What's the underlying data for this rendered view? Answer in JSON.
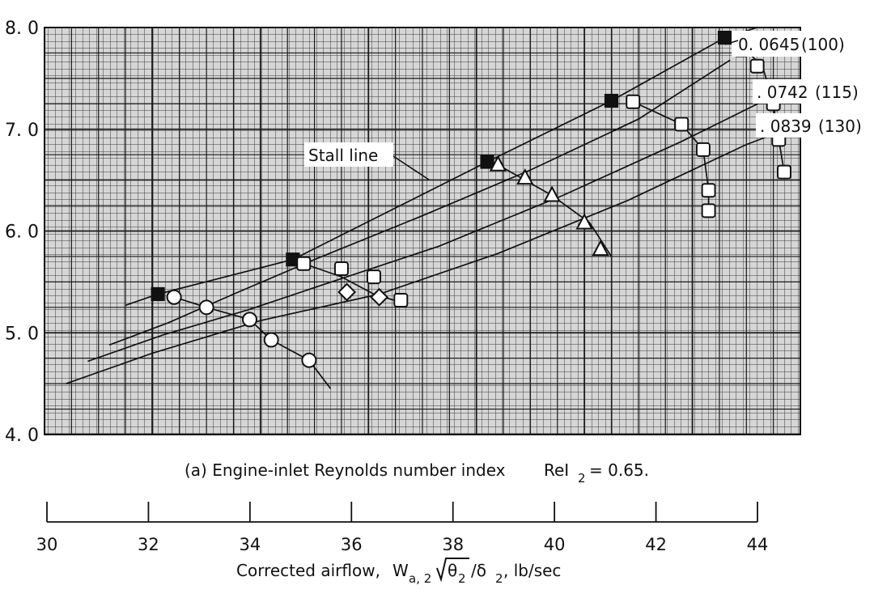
{
  "chart_data": {
    "type": "line",
    "caption_lead": "(a) Engine-inlet Reynolds number index",
    "caption_symbol": "ReI",
    "caption_subscript": "2",
    "caption_value": "= 0.65.",
    "xlabel": {
      "lead": "Corrected airflow,",
      "w": "W",
      "w_sub": "a, 2",
      "theta": "θ",
      "theta_sub": "2",
      "slash": "/δ",
      "delta_sub": "2",
      "unit": ",  lb/sec"
    },
    "ylabel": "",
    "xlim": [
      30,
      44
    ],
    "ylim": [
      4.0,
      8.0
    ],
    "x_ticks": [
      30,
      32,
      34,
      36,
      38,
      40,
      42,
      44
    ],
    "x_tick_labels": [
      "30",
      "32",
      "34",
      "36",
      "38",
      "40",
      "42",
      "44"
    ],
    "y_ticks": [
      4.0,
      5.0,
      6.0,
      7.0,
      8.0
    ],
    "y_tick_labels": [
      "4. 0",
      "5. 0",
      "6. 0",
      "7. 0",
      "8. 0"
    ],
    "grid": true,
    "annotations": {
      "stall_line": "Stall line",
      "speed_lines": [
        {
          "value": "0. 0645",
          "pct": "(100)"
        },
        {
          "value": ". 0742",
          "pct": "(115)"
        },
        {
          "value": ". 0839",
          "pct": "(130)"
        }
      ]
    },
    "stall_line": {
      "x": [
        31.5,
        32.1,
        34.6,
        38.2,
        40.5,
        42.6,
        43.2
      ],
      "y": [
        5.27,
        5.38,
        5.72,
        6.68,
        7.28,
        7.9,
        8.0
      ]
    },
    "speed_lines": [
      {
        "x": [
          32.4,
          33.0,
          33.8,
          34.2,
          34.9,
          35.3
        ],
        "y": [
          5.35,
          5.25,
          5.13,
          4.93,
          4.73,
          4.45
        ]
      },
      {
        "x": [
          34.8,
          35.5,
          36.1,
          36.6
        ],
        "y": [
          5.68,
          5.55,
          5.38,
          5.3
        ]
      },
      {
        "x": [
          38.4,
          38.9,
          39.4,
          40.1,
          40.5
        ],
        "y": [
          6.65,
          6.5,
          6.35,
          6.08,
          5.75
        ]
      },
      {
        "x": [
          40.9,
          41.8,
          42.2,
          42.3,
          42.3
        ],
        "y": [
          7.27,
          7.05,
          6.8,
          6.4,
          6.2
        ]
      },
      {
        "x": [
          43.0,
          43.3,
          43.5,
          43.6,
          43.7
        ],
        "y": [
          7.77,
          7.62,
          7.25,
          6.9,
          6.58
        ]
      }
    ],
    "series": [
      {
        "x": [
          31.9,
          32.4,
          34.6,
          36.3
        ],
        "y": [
          4.87,
          5.35,
          5.68,
          5.35
        ],
        "curve": {
          "x": [
            31.2,
            32.3,
            33.5,
            35.0,
            37.0,
            39.0,
            41.0,
            42.7
          ],
          "y": [
            4.88,
            5.1,
            5.38,
            5.72,
            6.15,
            6.6,
            7.1,
            7.68
          ]
        }
      },
      {
        "x": [
          31.3,
          33.0,
          34.9,
          35.5,
          37.5,
          40.0,
          42.3
        ],
        "y": [
          4.72,
          5.0,
          5.4,
          5.55,
          5.95,
          6.5,
          7.12
        ],
        "curve": {
          "x": [
            30.8,
            32.2,
            33.8,
            35.2,
            37.3,
            39.6,
            41.8,
            43.4
          ],
          "y": [
            4.72,
            4.98,
            5.23,
            5.48,
            5.85,
            6.35,
            6.88,
            7.3
          ]
        }
      },
      {
        "x": [
          30.5,
          32.0,
          34.0,
          36.1,
          38.0,
          40.5,
          43.5
        ],
        "y": [
          4.5,
          4.82,
          5.13,
          5.38,
          5.72,
          6.2,
          6.92
        ],
        "curve": {
          "x": [
            30.4,
            32.0,
            34.0,
            36.2,
            38.4,
            40.8,
            43.0,
            44.0
          ],
          "y": [
            4.5,
            4.8,
            5.12,
            5.38,
            5.78,
            6.3,
            6.85,
            7.05
          ]
        }
      }
    ],
    "markers": {
      "filled_squares": {
        "x": [
          32.1,
          34.6,
          38.2,
          40.5,
          42.6
        ],
        "y": [
          5.38,
          5.72,
          6.68,
          7.28,
          7.9
        ]
      },
      "open_circles": {
        "x": [
          32.4,
          33.0,
          33.8,
          34.2,
          34.9
        ],
        "y": [
          5.35,
          5.25,
          5.13,
          4.93,
          4.73
        ]
      },
      "open_squares": {
        "x": [
          34.8,
          35.5,
          36.1,
          36.6,
          42.9,
          43.2,
          43.5,
          43.6,
          43.7,
          42.3,
          42.3,
          42.2,
          41.8,
          40.9
        ],
        "y": [
          5.68,
          5.63,
          5.55,
          5.32,
          7.78,
          7.62,
          7.25,
          6.9,
          6.58,
          6.4,
          6.2,
          6.8,
          7.05,
          7.27
        ]
      },
      "open_diamonds": {
        "x": [
          35.6,
          36.2
        ],
        "y": [
          5.4,
          5.35
        ]
      },
      "open_triangles": {
        "x": [
          38.4,
          38.9,
          39.4,
          40.0,
          40.3
        ],
        "y": [
          6.65,
          6.52,
          6.35,
          6.08,
          5.82
        ]
      }
    }
  }
}
